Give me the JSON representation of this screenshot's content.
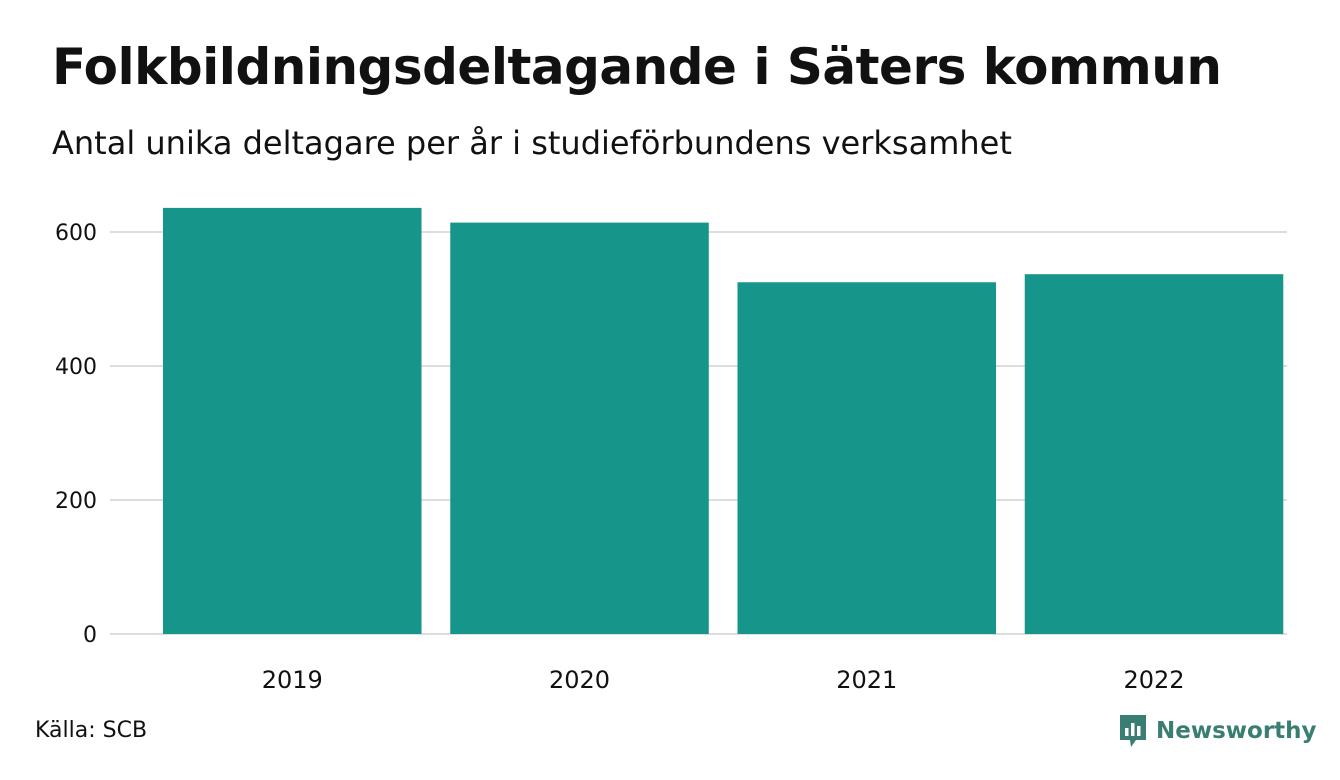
{
  "title": "Folkbildningsdeltagande i Säters kommun",
  "subtitle": "Antal unika deltagare per år i studieförbundens verksamhet",
  "source": "Källa: SCB",
  "brand": {
    "name": "Newsworthy",
    "icon": "newsworthy-logo-icon",
    "color": "#3a7d72"
  },
  "chart_data": {
    "type": "bar",
    "categories": [
      "2019",
      "2020",
      "2021",
      "2022"
    ],
    "values": [
      636,
      614,
      525,
      537
    ],
    "ylim": [
      0,
      600
    ],
    "yticks": [
      0,
      200,
      400,
      600
    ],
    "grid": true,
    "bar_color": "#16958a",
    "grid_color": "#dddddd"
  }
}
